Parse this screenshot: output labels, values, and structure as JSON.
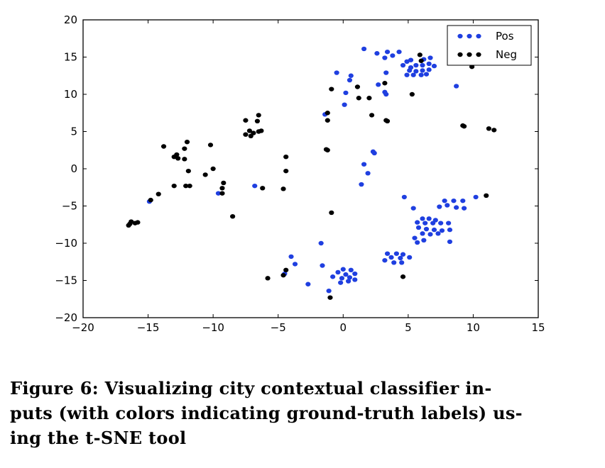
{
  "caption": {
    "line1": "Figure 6: Visualizing city contextual classifier in-",
    "line2": "puts (with colors indicating ground-truth labels) us-",
    "line3": "ing the t-SNE tool"
  },
  "chart_data": {
    "type": "scatter",
    "title": "",
    "xlabel": "",
    "ylabel": "",
    "xlim": [
      -20,
      15
    ],
    "ylim": [
      -20,
      20
    ],
    "xticks": [
      -20,
      -15,
      -10,
      -5,
      0,
      5,
      10,
      15
    ],
    "yticks": [
      -20,
      -15,
      -10,
      -5,
      0,
      5,
      10,
      15,
      20
    ],
    "grid": false,
    "legend": {
      "position": "top-right",
      "entries": [
        "Pos",
        "Neg"
      ]
    },
    "series": [
      {
        "name": "Pos",
        "color": "#1f3fe0",
        "points": [
          [
            1.6,
            16.1
          ],
          [
            2.6,
            15.5
          ],
          [
            3.4,
            15.7
          ],
          [
            3.8,
            15.2
          ],
          [
            4.3,
            15.7
          ],
          [
            3.2,
            14.9
          ],
          [
            4.9,
            14.4
          ],
          [
            5.2,
            14.6
          ],
          [
            6.2,
            14.7
          ],
          [
            6.7,
            14.9
          ],
          [
            4.6,
            13.9
          ],
          [
            5.2,
            13.6
          ],
          [
            5.6,
            13.9
          ],
          [
            6.1,
            13.9
          ],
          [
            6.6,
            14.1
          ],
          [
            7.0,
            13.8
          ],
          [
            5.1,
            13.2
          ],
          [
            5.6,
            13.1
          ],
          [
            6.1,
            13.2
          ],
          [
            6.6,
            13.3
          ],
          [
            4.9,
            12.6
          ],
          [
            5.4,
            12.6
          ],
          [
            6.0,
            12.6
          ],
          [
            6.4,
            12.7
          ],
          [
            3.3,
            12.9
          ],
          [
            2.7,
            11.3
          ],
          [
            3.2,
            10.3
          ],
          [
            3.3,
            10.0
          ],
          [
            0.6,
            12.5
          ],
          [
            0.5,
            11.9
          ],
          [
            -0.5,
            12.9
          ],
          [
            0.2,
            10.2
          ],
          [
            0.1,
            8.6
          ],
          [
            -1.4,
            7.3
          ],
          [
            8.7,
            11.1
          ],
          [
            2.3,
            2.3
          ],
          [
            2.4,
            2.1
          ],
          [
            1.6,
            0.6
          ],
          [
            1.9,
            -0.6
          ],
          [
            1.4,
            -2.1
          ],
          [
            4.7,
            -3.8
          ],
          [
            5.4,
            -5.3
          ],
          [
            7.8,
            -4.3
          ],
          [
            8.5,
            -4.3
          ],
          [
            9.2,
            -4.3
          ],
          [
            10.2,
            -3.8
          ],
          [
            7.4,
            -5.1
          ],
          [
            8.0,
            -4.9
          ],
          [
            8.7,
            -5.2
          ],
          [
            9.3,
            -5.3
          ],
          [
            6.1,
            -6.7
          ],
          [
            6.6,
            -6.7
          ],
          [
            7.1,
            -6.9
          ],
          [
            5.7,
            -7.2
          ],
          [
            6.3,
            -7.3
          ],
          [
            6.9,
            -7.3
          ],
          [
            7.5,
            -7.3
          ],
          [
            8.1,
            -7.3
          ],
          [
            5.8,
            -7.9
          ],
          [
            6.4,
            -8.1
          ],
          [
            7.0,
            -8.2
          ],
          [
            7.6,
            -8.3
          ],
          [
            8.2,
            -8.2
          ],
          [
            6.1,
            -8.7
          ],
          [
            6.7,
            -8.8
          ],
          [
            7.3,
            -8.7
          ],
          [
            5.5,
            -9.3
          ],
          [
            6.2,
            -9.6
          ],
          [
            5.7,
            -9.9
          ],
          [
            8.2,
            -9.8
          ],
          [
            3.4,
            -11.4
          ],
          [
            4.1,
            -11.4
          ],
          [
            4.6,
            -11.5
          ],
          [
            3.7,
            -11.9
          ],
          [
            4.4,
            -12.0
          ],
          [
            5.1,
            -11.9
          ],
          [
            3.2,
            -12.3
          ],
          [
            3.9,
            -12.6
          ],
          [
            4.5,
            -12.6
          ],
          [
            -1.7,
            -10.0
          ],
          [
            -4.0,
            -11.8
          ],
          [
            -3.7,
            -12.8
          ],
          [
            -1.6,
            -13.0
          ],
          [
            -4.5,
            -14.1
          ],
          [
            0.0,
            -13.5
          ],
          [
            0.6,
            -13.6
          ],
          [
            -0.4,
            -13.9
          ],
          [
            0.2,
            -14.2
          ],
          [
            0.9,
            -14.1
          ],
          [
            -0.8,
            -14.5
          ],
          [
            -0.1,
            -14.7
          ],
          [
            0.5,
            -14.6
          ],
          [
            -0.2,
            -15.3
          ],
          [
            0.4,
            -15.1
          ],
          [
            0.9,
            -14.9
          ],
          [
            -2.7,
            -15.5
          ],
          [
            -1.1,
            -16.4
          ],
          [
            -9.6,
            -3.3
          ],
          [
            -6.8,
            -2.3
          ],
          [
            -14.9,
            -4.4
          ]
        ]
      },
      {
        "name": "Neg",
        "color": "#000000",
        "points": [
          [
            5.9,
            15.3
          ],
          [
            6.0,
            14.5
          ],
          [
            9.9,
            13.7
          ],
          [
            5.3,
            10.0
          ],
          [
            3.2,
            11.5
          ],
          [
            -0.9,
            10.7
          ],
          [
            1.1,
            11.0
          ],
          [
            1.2,
            9.5
          ],
          [
            2.0,
            9.5
          ],
          [
            2.2,
            7.2
          ],
          [
            3.3,
            6.5
          ],
          [
            3.4,
            6.4
          ],
          [
            -1.2,
            7.5
          ],
          [
            -1.2,
            6.5
          ],
          [
            9.2,
            5.8
          ],
          [
            9.3,
            5.7
          ],
          [
            11.2,
            5.4
          ],
          [
            11.6,
            5.2
          ],
          [
            -1.3,
            2.6
          ],
          [
            -1.2,
            2.5
          ],
          [
            -7.5,
            6.5
          ],
          [
            -6.5,
            7.2
          ],
          [
            -6.6,
            6.4
          ],
          [
            -7.2,
            5.1
          ],
          [
            -6.9,
            4.8
          ],
          [
            -7.5,
            4.6
          ],
          [
            -7.1,
            4.4
          ],
          [
            -6.5,
            5.0
          ],
          [
            -6.3,
            5.1
          ],
          [
            -13.8,
            3.0
          ],
          [
            -12.0,
            3.6
          ],
          [
            -10.2,
            3.2
          ],
          [
            -12.2,
            2.7
          ],
          [
            -12.8,
            1.9
          ],
          [
            -13.0,
            1.6
          ],
          [
            -12.7,
            1.4
          ],
          [
            -12.2,
            1.3
          ],
          [
            -10.0,
            0.0
          ],
          [
            -11.9,
            -0.3
          ],
          [
            -10.6,
            -0.8
          ],
          [
            -11.8,
            -2.3
          ],
          [
            -12.1,
            -2.3
          ],
          [
            -13.0,
            -2.3
          ],
          [
            -9.2,
            -1.9
          ],
          [
            -9.3,
            -2.6
          ],
          [
            -9.3,
            -3.3
          ],
          [
            -6.2,
            -2.6
          ],
          [
            -4.6,
            -2.7
          ],
          [
            -4.4,
            1.6
          ],
          [
            -4.4,
            -0.3
          ],
          [
            -14.2,
            -3.4
          ],
          [
            -14.8,
            -4.2
          ],
          [
            -8.5,
            -6.4
          ],
          [
            -16.3,
            -7.1
          ],
          [
            -16.0,
            -7.3
          ],
          [
            -15.8,
            -7.2
          ],
          [
            -16.5,
            -7.6
          ],
          [
            -16.4,
            -7.4
          ],
          [
            -0.9,
            -5.9
          ],
          [
            11.0,
            -3.6
          ],
          [
            -4.4,
            -13.6
          ],
          [
            -4.6,
            -14.3
          ],
          [
            -5.8,
            -14.7
          ],
          [
            4.6,
            -14.5
          ],
          [
            -1.0,
            -17.3
          ]
        ]
      }
    ]
  }
}
